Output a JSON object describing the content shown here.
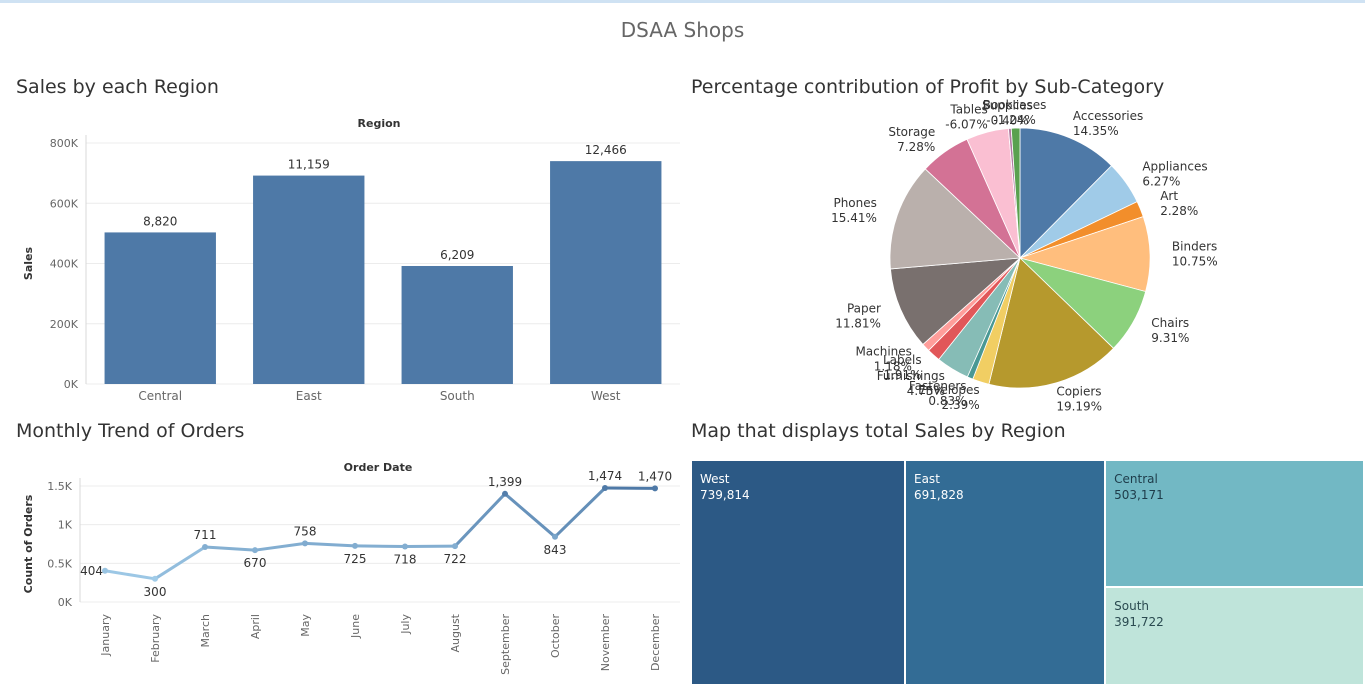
{
  "dashboard": {
    "title": "DSAA Shops"
  },
  "panels": {
    "sales_region_title": "Sales by each Region",
    "profit_title": "Percentage contribution of Profit by Sub-Category",
    "orders_title": "Monthly Trend of Orders",
    "map_title": "Map that displays total Sales by Region"
  },
  "colors": {
    "bar": "#4e79a7",
    "line_light": "#a0cbe8",
    "line_dark": "#4e79a7",
    "axis_text": "#666666",
    "grid": "#ececec"
  },
  "chart_data": [
    {
      "id": "sales-by-region",
      "type": "bar",
      "title": "",
      "header": "Region",
      "ylabel": "Sales",
      "categories": [
        "Central",
        "East",
        "South",
        "West"
      ],
      "values": [
        503171,
        691828,
        391722,
        739814
      ],
      "data_labels": [
        "8,820",
        "11,159",
        "6,209",
        "12,466"
      ],
      "ylim": [
        0,
        800000
      ],
      "yticks": [
        0,
        200000,
        400000,
        600000,
        800000
      ],
      "ytick_labels": [
        "0K",
        "200K",
        "400K",
        "600K",
        "800K"
      ],
      "grid": true
    },
    {
      "id": "profit-by-subcategory",
      "type": "pie",
      "title": "",
      "slices": [
        {
          "name": "Accessories",
          "label": "14.35%",
          "value": 14.35,
          "color": "#4e79a7"
        },
        {
          "name": "Appliances",
          "label": "6.27%",
          "value": 6.27,
          "color": "#a0cbe8"
        },
        {
          "name": "Art",
          "label": "2.28%",
          "value": 2.28,
          "color": "#f28e2b"
        },
        {
          "name": "Binders",
          "label": "10.75%",
          "value": 10.75,
          "color": "#ffbe7d"
        },
        {
          "name": "Chairs",
          "label": "9.31%",
          "value": 9.31,
          "color": "#8cd17d"
        },
        {
          "name": "Copiers",
          "label": "19.19%",
          "value": 19.19,
          "color": "#b6992d"
        },
        {
          "name": "Envelopes",
          "label": "2.39%",
          "value": 2.39,
          "color": "#f1ce63"
        },
        {
          "name": "Fasteners",
          "label": "0.83%",
          "value": 0.83,
          "color": "#499894"
        },
        {
          "name": "Furnishings",
          "label": "4.75%",
          "value": 4.75,
          "color": "#86bcb6"
        },
        {
          "name": "Labels",
          "label": "1.91%",
          "value": 1.91,
          "color": "#e15759"
        },
        {
          "name": "Machines",
          "label": "1.18%",
          "value": 1.18,
          "color": "#ff9d9a"
        },
        {
          "name": "Paper",
          "label": "11.81%",
          "value": 11.81,
          "color": "#79706e"
        },
        {
          "name": "Phones",
          "label": "15.41%",
          "value": 15.41,
          "color": "#bab0ac"
        },
        {
          "name": "Storage",
          "label": "7.28%",
          "value": 7.28,
          "color": "#d37295"
        },
        {
          "name": "Tables",
          "label": "-6.07%",
          "value": 6.07,
          "color": "#fabfd2"
        },
        {
          "name": "Supplies",
          "label": "-0.40%",
          "value": 0.4,
          "color": "#b07aa1"
        },
        {
          "name": "Bookcases",
          "label": "-1.24%",
          "value": 1.24,
          "color": "#59a14f"
        }
      ]
    },
    {
      "id": "monthly-orders",
      "type": "line",
      "title": "",
      "header": "Order Date",
      "ylabel": "Count of Orders",
      "categories": [
        "January",
        "February",
        "March",
        "April",
        "May",
        "June",
        "July",
        "August",
        "September",
        "October",
        "November",
        "December"
      ],
      "values": [
        404,
        300,
        711,
        670,
        758,
        725,
        718,
        722,
        1399,
        843,
        1474,
        1470
      ],
      "data_labels": [
        "404",
        "300",
        "711",
        "670",
        "758",
        "725",
        "718",
        "722",
        "1,399",
        "843",
        "1,474",
        "1,470"
      ],
      "ylim": [
        0,
        1500
      ],
      "yticks": [
        0,
        500,
        1000,
        1500
      ],
      "ytick_labels": [
        "0K",
        "0.5K",
        "1K",
        "1.5K"
      ],
      "grid": true
    },
    {
      "id": "sales-map",
      "type": "treemap",
      "title": "",
      "items": [
        {
          "name": "West",
          "value": 739814,
          "label": "739,814",
          "color": "#2c5985",
          "text_color": "#ffffff"
        },
        {
          "name": "East",
          "value": 691828,
          "label": "691,828",
          "color": "#336c95",
          "text_color": "#ffffff"
        },
        {
          "name": "Central",
          "value": 503171,
          "label": "503,171",
          "color": "#72b8c4",
          "text_color": "#1e3c4a"
        },
        {
          "name": "South",
          "value": 391722,
          "label": "391,722",
          "color": "#bfe4da",
          "text_color": "#2a4a50"
        }
      ]
    }
  ]
}
